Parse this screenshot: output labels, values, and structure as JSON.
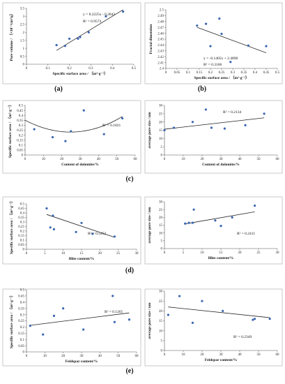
{
  "panel_labels": [
    "(a)",
    "(b)",
    "(c)",
    "(d)",
    "(e)"
  ],
  "colors": {
    "point": "#3a66b0",
    "line": "#222222",
    "frame": "#bdbdbd"
  },
  "chart_data": [
    {
      "id": "a",
      "type": "scatter",
      "xlabel": "Specific surface area / （m²·g⁻¹）",
      "ylabel": "Pore volume / （×10⁻³cm³/g）",
      "xlim": [
        0,
        0.5
      ],
      "ylim": [
        0,
        3.5
      ],
      "xticks": [
        0,
        0.1,
        0.2,
        0.3,
        0.4,
        0.5
      ],
      "yticks": [
        0,
        0.5,
        1,
        1.5,
        2,
        2.5,
        3,
        3.5
      ],
      "x": [
        0.14,
        0.18,
        0.2,
        0.24,
        0.25,
        0.29,
        0.37,
        0.45
      ],
      "y": [
        1.2,
        1.15,
        1.6,
        1.6,
        1.7,
        2.0,
        3.0,
        3.3
      ],
      "trend": {
        "kind": "linear",
        "slope": 8.2225,
        "intercept": -0.2843
      },
      "annotations": [
        "y = 8.2225x - 0.2843",
        "R² = 0.9574"
      ]
    },
    {
      "id": "b",
      "type": "scatter",
      "xlabel": "Specific surface area / （m²·g⁻¹）",
      "ylabel": "Fractal dimension",
      "xlim": [
        0,
        0.5
      ],
      "ylim": [
        2.4,
        2.5
      ],
      "xticks": [
        0,
        0.05,
        0.1,
        0.15,
        0.2,
        0.25,
        0.3,
        0.35,
        0.4,
        0.45,
        0.5
      ],
      "yticks": [
        2.4,
        2.41,
        2.42,
        2.43,
        2.44,
        2.45,
        2.46,
        2.47,
        2.48,
        2.49,
        2.5
      ],
      "x": [
        0.14,
        0.18,
        0.2,
        0.24,
        0.25,
        0.29,
        0.37,
        0.45
      ],
      "y": [
        2.473,
        2.476,
        2.438,
        2.485,
        2.459,
        2.411,
        2.439,
        2.438
      ],
      "trend": {
        "kind": "linear",
        "slope": -0.1405,
        "intercept": 2.4898
      },
      "annotations": [
        "y = -0.1405x + 2.4898",
        "R² = 0.3166"
      ]
    },
    {
      "id": "c1",
      "type": "scatter",
      "xlabel": "Content of dolomite/%",
      "ylabel": "Specific surface area / （m²·g⁻¹）",
      "xlim": [
        0,
        60
      ],
      "ylim": [
        0,
        0.5
      ],
      "xticks": [
        0,
        10,
        20,
        30,
        40,
        50,
        60
      ],
      "yticks": [
        0,
        0.05,
        0.1,
        0.15,
        0.2,
        0.25,
        0.3,
        0.35,
        0.4,
        0.45,
        0.5
      ],
      "x": [
        5,
        15,
        22,
        25,
        32,
        43,
        53
      ],
      "y": [
        0.26,
        0.18,
        0.14,
        0.24,
        0.45,
        0.21,
        0.37
      ],
      "trend": {
        "kind": "poly2",
        "a": 0.000196,
        "b": -0.00969,
        "c": 0.351
      },
      "annotations": [
        "R² = 0.1821"
      ]
    },
    {
      "id": "c2",
      "type": "scatter",
      "xlabel": "Content of dolomite/%",
      "ylabel": "average pore size / nm",
      "xlim": [
        0,
        60
      ],
      "ylim": [
        0,
        30
      ],
      "xticks": [
        0,
        10,
        20,
        30,
        40,
        50,
        60
      ],
      "yticks": [
        0,
        5,
        10,
        15,
        20,
        25,
        30
      ],
      "x": [
        0,
        5,
        15,
        22,
        25,
        32,
        43,
        53
      ],
      "y": [
        15,
        16.5,
        20,
        27.5,
        16.5,
        16,
        18,
        25
      ],
      "trend": {
        "kind": "linear",
        "slope": 0.13,
        "intercept": 15.6
      },
      "annotations": [
        "R² = 0.2134"
      ]
    },
    {
      "id": "d1",
      "type": "scatter",
      "xlabel": "Illite content/%",
      "ylabel": "Specific surface area / （m²·g⁻¹）",
      "xlim": [
        0,
        30
      ],
      "ylim": [
        0,
        0.5
      ],
      "xticks": [
        0,
        5,
        10,
        15,
        20,
        25,
        30
      ],
      "yticks": [
        0,
        0.05,
        0.1,
        0.15,
        0.2,
        0.25,
        0.3,
        0.35,
        0.4,
        0.45,
        0.5
      ],
      "x": [
        5.5,
        6.5,
        7.2,
        7.5,
        13.5,
        15,
        18,
        24
      ],
      "y": [
        0.45,
        0.24,
        0.37,
        0.22,
        0.19,
        0.29,
        0.17,
        0.14
      ],
      "trend": {
        "kind": "linear",
        "slope": -0.0136,
        "intercept": 0.458
      },
      "annotations": [
        "R² = 0.5452"
      ]
    },
    {
      "id": "d2",
      "type": "scatter",
      "xlabel": "Illite content/%",
      "ylabel": "average pore size / nm",
      "xlim": [
        0,
        30
      ],
      "ylim": [
        0,
        30
      ],
      "xticks": [
        0,
        5,
        10,
        15,
        20,
        25,
        30
      ],
      "yticks": [
        0,
        5,
        10,
        15,
        20,
        25,
        30
      ],
      "x": [
        5.5,
        6.5,
        7.5,
        7.8,
        13.5,
        15,
        18,
        24
      ],
      "y": [
        16,
        16.5,
        16.5,
        25,
        18,
        14.5,
        20,
        27.5
      ],
      "trend": {
        "kind": "linear",
        "slope": 0.42,
        "intercept": 13.5
      },
      "annotations": [
        "R² = 0.2411"
      ]
    },
    {
      "id": "e1",
      "type": "scatter",
      "xlabel": "Feldspar content/%",
      "ylabel": "Specific surface area / （m²·g⁻¹）",
      "xlim": [
        0,
        60
      ],
      "ylim": [
        0,
        0.5
      ],
      "xticks": [
        0,
        10,
        20,
        30,
        40,
        50,
        60
      ],
      "yticks": [
        0,
        0.05,
        0.1,
        0.15,
        0.2,
        0.25,
        0.3,
        0.35,
        0.4,
        0.45,
        0.5
      ],
      "x": [
        2,
        9,
        15,
        20,
        31,
        47,
        48,
        56
      ],
      "y": [
        0.21,
        0.14,
        0.29,
        0.35,
        0.18,
        0.45,
        0.24,
        0.26
      ],
      "trend": {
        "kind": "linear",
        "slope": 0.00185,
        "intercept": 0.21
      },
      "annotations": [
        "R² = 0.1265"
      ]
    },
    {
      "id": "e2",
      "type": "scatter",
      "xlabel": "Feldspar content/%",
      "ylabel": "average pore size / nm",
      "xlim": [
        0,
        60
      ],
      "ylim": [
        0,
        30
      ],
      "xticks": [
        0,
        10,
        20,
        30,
        40,
        50,
        60
      ],
      "yticks": [
        0,
        5,
        10,
        15,
        20,
        25,
        30
      ],
      "x": [
        2,
        8,
        15,
        20,
        31,
        47,
        48,
        56
      ],
      "y": [
        18,
        27.5,
        14,
        25,
        20,
        15.5,
        16,
        16
      ],
      "trend": {
        "kind": "linear",
        "slope": -0.1,
        "intercept": 22.2
      },
      "annotations": [
        "R² = 0.2349"
      ]
    }
  ]
}
